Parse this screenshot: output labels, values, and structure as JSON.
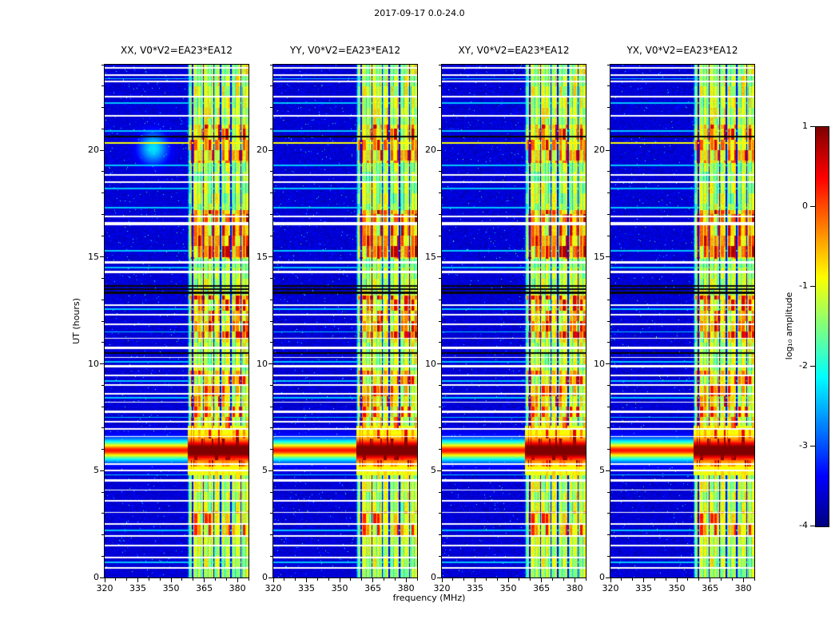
{
  "chart_data": {
    "type": "heatmap",
    "title": "2017-09-17 0.0-24.0",
    "panels": [
      {
        "label": "XX",
        "title": "XX, V0*V2=EA23*EA12"
      },
      {
        "label": "YY",
        "title": "YY, V0*V2=EA23*EA12"
      },
      {
        "label": "XY",
        "title": "XY, V0*V2=EA23*EA12"
      },
      {
        "label": "YX",
        "title": "YX, V0*V2=EA23*EA12"
      }
    ],
    "x_axis": {
      "label": "frequency (MHz)",
      "min": 320,
      "max": 385,
      "major_ticks": [
        320,
        335,
        350,
        365,
        380
      ],
      "minor_tick_step": 5
    },
    "y_axis": {
      "label": "UT (hours)",
      "min": 0,
      "max": 24,
      "major_ticks": [
        0,
        5,
        10,
        15,
        20
      ],
      "minor_tick_step": 1
    },
    "colorbar": {
      "label": "log₁₀ amplitude",
      "min": -4,
      "max": 1,
      "ticks": [
        1,
        0,
        -1,
        -2,
        -3,
        -4
      ],
      "colormap": "jet"
    },
    "features": {
      "background_level": -3.8,
      "rfi_band": {
        "freq_start": 357.5,
        "freq_end": 385,
        "dark_lines_mhz": [
          359.6,
          364.6,
          369.3,
          372.4,
          377.0,
          381.6
        ],
        "cell_width_mhz": 1.55,
        "time_block_hours": 0.5
      },
      "band_activity": [
        [
          0,
          1.9,
          0.5
        ],
        [
          1.9,
          3.1,
          0.75
        ],
        [
          3.1,
          5.2,
          0.55
        ],
        [
          5.2,
          6.6,
          1.0
        ],
        [
          6.6,
          9.7,
          0.8
        ],
        [
          9.7,
          11.2,
          0.55
        ],
        [
          11.2,
          13.2,
          0.85
        ],
        [
          13.2,
          14.9,
          0.5
        ],
        [
          14.9,
          17.2,
          0.9
        ],
        [
          17.2,
          19.4,
          0.5
        ],
        [
          19.4,
          21.2,
          0.85
        ],
        [
          21.2,
          24,
          0.55
        ]
      ],
      "burst": {
        "ut": 5.95,
        "core_halfwidth_hr": 0.22,
        "halo_sigma_hr": 0.33
      },
      "white_rows": [
        [
          0.45,
          0.05
        ],
        [
          0.95,
          0.04
        ],
        [
          1.5,
          0.04
        ],
        [
          1.95,
          0.03
        ],
        [
          2.5,
          0.05
        ],
        [
          3.05,
          0.03
        ],
        [
          3.6,
          0.04
        ],
        [
          4.1,
          0.03
        ],
        [
          4.55,
          0.05
        ],
        [
          5.0,
          0.03
        ],
        [
          5.3,
          0.03
        ],
        [
          6.6,
          0.03
        ],
        [
          6.95,
          0.05
        ],
        [
          7.3,
          0.03
        ],
        [
          7.75,
          0.05
        ],
        [
          8.2,
          0.03
        ],
        [
          8.6,
          0.04
        ],
        [
          9.0,
          0.03
        ],
        [
          9.45,
          0.04
        ],
        [
          9.9,
          0.05
        ],
        [
          10.3,
          0.03
        ],
        [
          10.75,
          0.04
        ],
        [
          11.2,
          0.03
        ],
        [
          11.85,
          0.05
        ],
        [
          12.3,
          0.03
        ],
        [
          12.75,
          0.04
        ],
        [
          14.3,
          0.05
        ],
        [
          14.75,
          0.04
        ],
        [
          16.55,
          0.08
        ],
        [
          16.9,
          0.04
        ],
        [
          18.5,
          0.05
        ],
        [
          18.85,
          0.04
        ],
        [
          21.6,
          0.04
        ],
        [
          22.5,
          0.05
        ],
        [
          23.2,
          0.04
        ],
        [
          23.5,
          0.04
        ],
        [
          23.85,
          0.05
        ]
      ],
      "cyan_rows": [
        [
          0.7,
          0.03
        ],
        [
          2.2,
          0.03
        ],
        [
          4.8,
          0.03
        ],
        [
          7.5,
          0.03
        ],
        [
          8.4,
          0.03
        ],
        [
          9.2,
          0.03
        ],
        [
          10.1,
          0.03
        ],
        [
          11.5,
          0.03
        ],
        [
          12.55,
          0.03
        ],
        [
          14.5,
          0.03
        ],
        [
          15.3,
          0.03
        ],
        [
          17.3,
          0.03
        ],
        [
          18.2,
          0.03
        ],
        [
          19.3,
          0.03
        ],
        [
          20.9,
          0.03
        ],
        [
          22.2,
          0.03
        ],
        [
          23.35,
          0.03
        ]
      ],
      "red_rows": [
        [
          20.35,
          0.035
        ]
      ],
      "black_rows": [
        [
          10.52,
          0.035
        ],
        [
          13.32,
          0.05
        ],
        [
          13.48,
          0.04
        ],
        [
          13.64,
          0.05
        ],
        [
          20.62,
          0.035
        ]
      ],
      "blob": {
        "panel": 0,
        "ut": 20.1,
        "freq": 342,
        "sigma_freq": 7,
        "sigma_hr": 0.8,
        "amp": 1.5
      }
    }
  }
}
